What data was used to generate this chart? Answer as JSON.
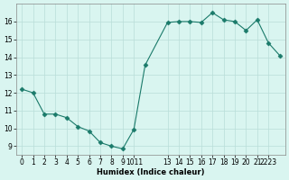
{
  "x": [
    0,
    1,
    2,
    3,
    4,
    5,
    6,
    7,
    8,
    9,
    10,
    11,
    13,
    14,
    15,
    16,
    17,
    18,
    19,
    20,
    21,
    22,
    23
  ],
  "y": [
    12.2,
    12.0,
    10.8,
    10.8,
    10.6,
    10.1,
    9.85,
    9.2,
    9.0,
    8.85,
    9.95,
    13.55,
    15.95,
    16.0,
    16.0,
    15.95,
    16.5,
    16.1,
    16.0,
    15.5,
    16.1,
    14.8,
    14.1
  ],
  "line_color": "#1a7a6a",
  "marker": "D",
  "marker_size": 2.5,
  "background_color": "#d9f5f0",
  "grid_color": "#b8ddd8",
  "xlabel": "Humidex (Indice chaleur)",
  "ylim": [
    8.5,
    17.0
  ],
  "xlim": [
    -0.5,
    23.5
  ],
  "yticks": [
    9,
    10,
    11,
    12,
    13,
    14,
    15,
    16
  ],
  "xtick_positions": [
    0,
    1,
    2,
    3,
    4,
    5,
    6,
    7,
    8,
    9,
    10,
    13,
    14,
    15,
    16,
    17,
    18,
    19,
    20,
    21,
    22
  ],
  "xtick_labels": [
    "0",
    "1",
    "2",
    "3",
    "4",
    "5",
    "6",
    "7",
    "8",
    "9",
    "1011",
    "13",
    "14",
    "15",
    "16",
    "17",
    "18",
    "19",
    "20",
    "21",
    "2223"
  ],
  "axis_fontsize": 6,
  "tick_fontsize": 5.5
}
